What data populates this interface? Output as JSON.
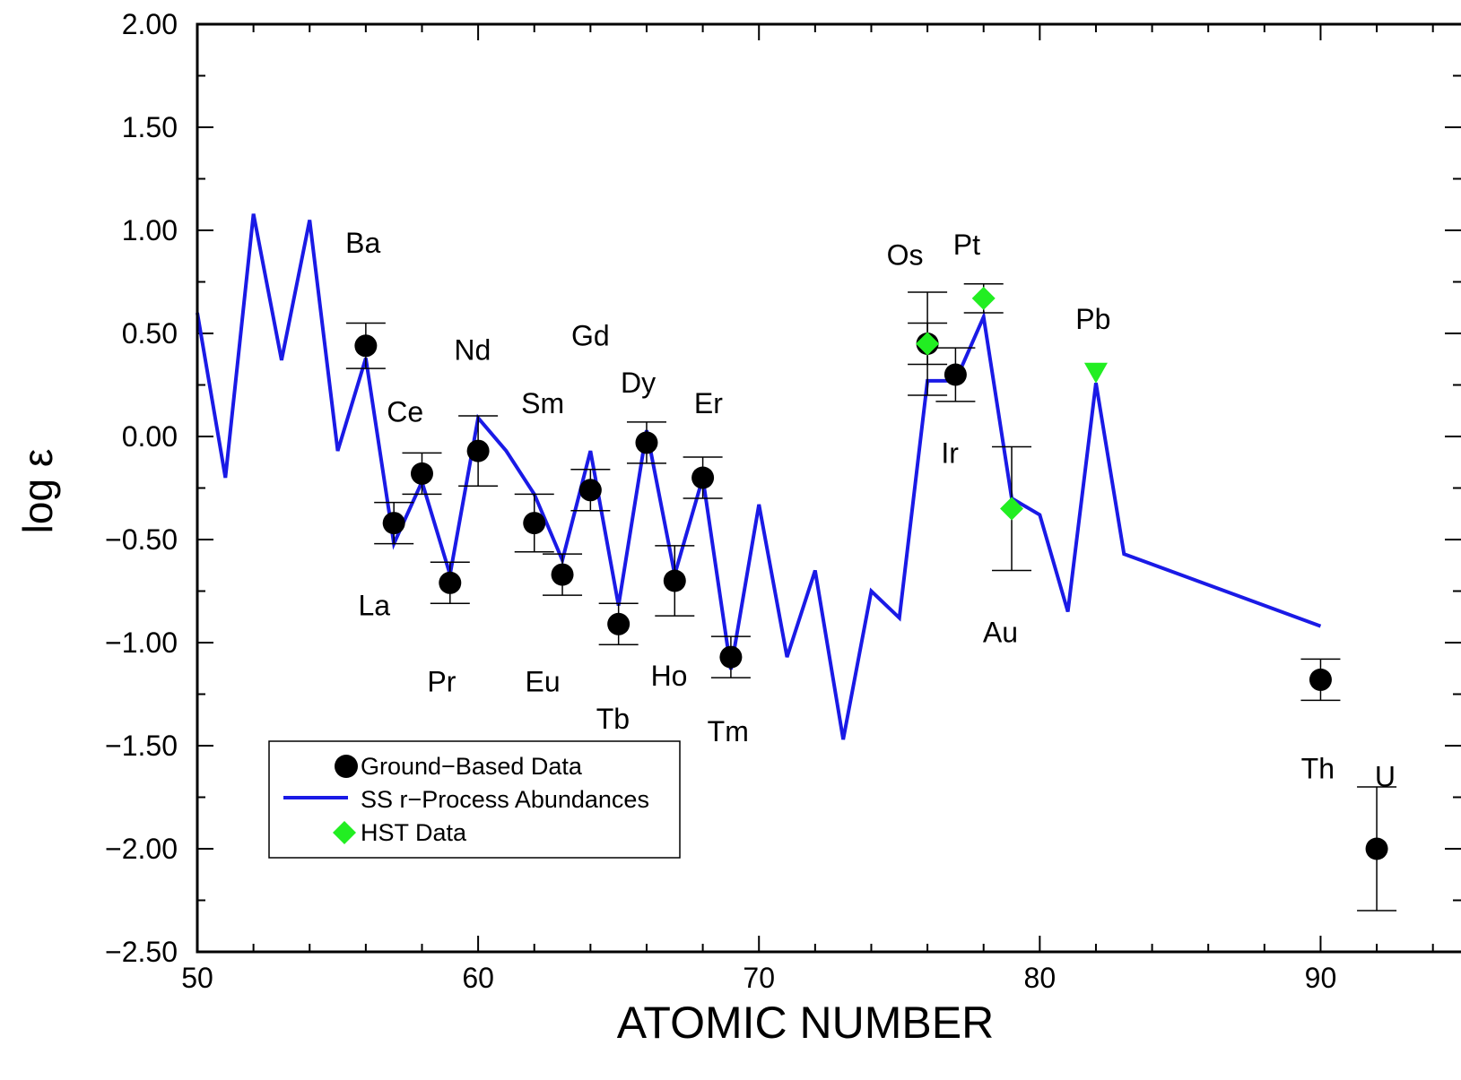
{
  "chart_data": {
    "type": "scatter",
    "xlabel": "ATOMIC NUMBER",
    "ylabel": "log ε",
    "xlim": [
      50,
      95
    ],
    "ylim": [
      -2.5,
      2.0
    ],
    "x_ticks": [
      50,
      60,
      70,
      80,
      90
    ],
    "x_tick_labels": [
      "50",
      "60",
      "70",
      "80",
      "90"
    ],
    "y_ticks": [
      2.0,
      1.5,
      1.0,
      0.5,
      0.0,
      -0.5,
      -1.0,
      -1.5,
      -2.0,
      -2.5
    ],
    "y_tick_labels": [
      "2.00",
      "1.50",
      "1.00",
      "0.50",
      "0.00",
      "−0.50",
      "−1.00",
      "−1.50",
      "−2.00",
      "−2.50"
    ],
    "legend_position": "bottom-left",
    "legend": [
      "Ground−Based Data",
      "SS r−Process Abundances",
      "HST Data"
    ],
    "colors": {
      "ground": "#000000",
      "line": "#1a1ae6",
      "hst": "#22ee22",
      "errorbar": "#000000"
    },
    "series": [
      {
        "name": "Ground−Based Data",
        "marker": "circle",
        "points": [
          {
            "x": 56,
            "y": 0.44,
            "err_lo": 0.11,
            "err_hi": 0.11
          },
          {
            "x": 57,
            "y": -0.42,
            "err_lo": 0.1,
            "err_hi": 0.1
          },
          {
            "x": 58,
            "y": -0.18,
            "err_lo": 0.1,
            "err_hi": 0.1
          },
          {
            "x": 59,
            "y": -0.71,
            "err_lo": 0.1,
            "err_hi": 0.1
          },
          {
            "x": 60,
            "y": -0.07,
            "err_lo": 0.17,
            "err_hi": 0.17
          },
          {
            "x": 62,
            "y": -0.42,
            "err_lo": 0.14,
            "err_hi": 0.14
          },
          {
            "x": 63,
            "y": -0.67,
            "err_lo": 0.1,
            "err_hi": 0.1
          },
          {
            "x": 64,
            "y": -0.26,
            "err_lo": 0.1,
            "err_hi": 0.1
          },
          {
            "x": 65,
            "y": -0.91,
            "err_lo": 0.1,
            "err_hi": 0.1
          },
          {
            "x": 66,
            "y": -0.03,
            "err_lo": 0.1,
            "err_hi": 0.1
          },
          {
            "x": 67,
            "y": -0.7,
            "err_lo": 0.17,
            "err_hi": 0.17
          },
          {
            "x": 68,
            "y": -0.2,
            "err_lo": 0.1,
            "err_hi": 0.1
          },
          {
            "x": 69,
            "y": -1.07,
            "err_lo": 0.1,
            "err_hi": 0.1
          },
          {
            "x": 76,
            "y": 0.45,
            "err_lo": 0.1,
            "err_hi": 0.1
          },
          {
            "x": 77,
            "y": 0.3,
            "err_lo": 0.13,
            "err_hi": 0.13
          },
          {
            "x": 90,
            "y": -1.18,
            "err_lo": 0.1,
            "err_hi": 0.1
          },
          {
            "x": 92,
            "y": -2.0,
            "err_lo": 0.3,
            "err_hi": 0.3
          }
        ]
      },
      {
        "name": "HST Data",
        "marker": "diamond",
        "points": [
          {
            "x": 76,
            "y": 0.45,
            "err_lo": 0.25,
            "err_hi": 0.25
          },
          {
            "x": 78,
            "y": 0.67,
            "err_lo": 0.07,
            "err_hi": 0.07
          },
          {
            "x": 79,
            "y": -0.35,
            "err_lo": 0.3,
            "err_hi": 0.3
          },
          {
            "x": 82,
            "y": 0.31,
            "marker": "triangle-down"
          }
        ]
      },
      {
        "name": "SS r−Process Abundances",
        "marker": "line",
        "x": [
          50,
          51,
          52,
          53,
          54,
          55,
          56,
          57,
          58,
          59,
          60,
          61,
          62,
          63,
          64,
          65,
          66,
          67,
          68,
          69,
          70,
          71,
          72,
          73,
          74,
          75,
          76,
          77,
          78,
          79,
          80,
          81,
          82,
          83,
          90
        ],
        "y": [
          0.6,
          -0.2,
          1.08,
          0.37,
          1.05,
          -0.07,
          0.38,
          -0.52,
          -0.22,
          -0.67,
          0.09,
          -0.07,
          -0.28,
          -0.6,
          -0.07,
          -0.82,
          0.03,
          -0.67,
          -0.2,
          -1.13,
          -0.33,
          -1.07,
          -0.65,
          -1.47,
          -0.75,
          -0.88,
          0.27,
          0.27,
          0.58,
          -0.3,
          -0.38,
          -0.85,
          0.26,
          -0.57,
          -0.92
        ]
      }
    ],
    "annotations": [
      {
        "text": "Ba",
        "x": 55.9,
        "y": 0.94
      },
      {
        "text": "Ce",
        "x": 57.4,
        "y": 0.12
      },
      {
        "text": "La",
        "x": 56.3,
        "y": -0.82
      },
      {
        "text": "Nd",
        "x": 59.8,
        "y": 0.42
      },
      {
        "text": "Pr",
        "x": 58.7,
        "y": -1.19
      },
      {
        "text": "Sm",
        "x": 62.3,
        "y": 0.16
      },
      {
        "text": "Eu",
        "x": 62.3,
        "y": -1.19
      },
      {
        "text": "Gd",
        "x": 64.0,
        "y": 0.49
      },
      {
        "text": "Dy",
        "x": 65.7,
        "y": 0.26
      },
      {
        "text": "Tb",
        "x": 64.8,
        "y": -1.37
      },
      {
        "text": "Ho",
        "x": 66.8,
        "y": -1.16
      },
      {
        "text": "Er",
        "x": 68.2,
        "y": 0.16
      },
      {
        "text": "Tm",
        "x": 68.9,
        "y": -1.43
      },
      {
        "text": "Os",
        "x": 75.2,
        "y": 0.88
      },
      {
        "text": "Pt",
        "x": 77.4,
        "y": 0.93
      },
      {
        "text": "Ir",
        "x": 76.8,
        "y": -0.08
      },
      {
        "text": "Au",
        "x": 78.6,
        "y": -0.95
      },
      {
        "text": "Pb",
        "x": 81.9,
        "y": 0.57
      },
      {
        "text": "Th",
        "x": 89.9,
        "y": -1.61
      },
      {
        "text": "U",
        "x": 92.3,
        "y": -1.65
      }
    ]
  }
}
